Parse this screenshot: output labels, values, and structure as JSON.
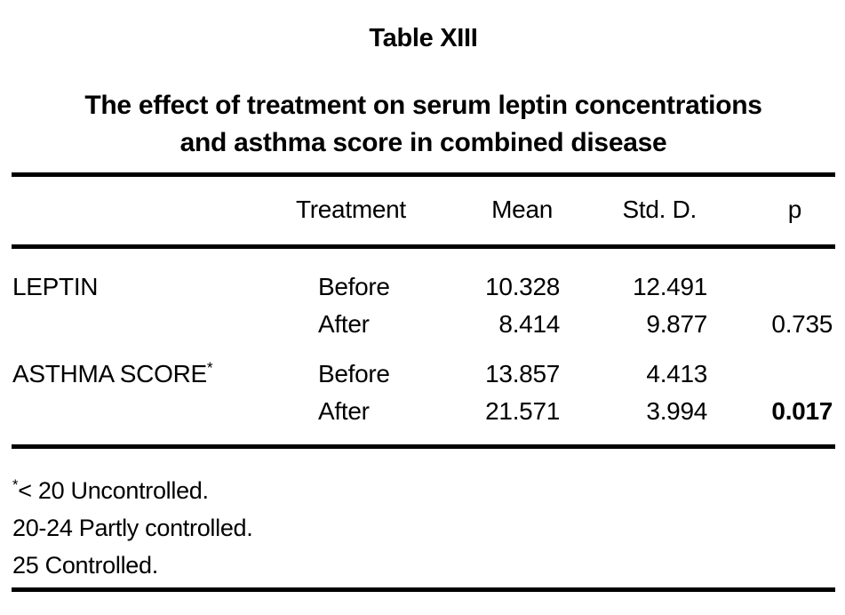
{
  "title": "Table XIII",
  "subtitle": {
    "line1": "The effect of treatment on serum leptin concentrations",
    "line2": "and asthma score in combined disease"
  },
  "table": {
    "columns": {
      "parameter": "",
      "treatment": "Treatment",
      "mean": "Mean",
      "std": "Std. D.",
      "p": "p"
    },
    "groups": [
      {
        "label": "LEPTIN",
        "marker": "",
        "rows": [
          {
            "treatment": "Before",
            "mean": "10.328",
            "std": "12.491",
            "p": ""
          },
          {
            "treatment": "After",
            "mean": "8.414",
            "std": "9.877",
            "p": "0.735"
          }
        ]
      },
      {
        "label": "ASTHMA SCORE",
        "marker": "*",
        "rows": [
          {
            "treatment": "Before",
            "mean": "13.857",
            "std": "4.413",
            "p": ""
          },
          {
            "treatment": "After",
            "mean": "21.571",
            "std": "3.994",
            "p": "0.017"
          }
        ]
      }
    ]
  },
  "footnotes": [
    {
      "marker": "*",
      "text": "< 20 Uncontrolled."
    },
    {
      "marker": "",
      "text": "20-24 Partly controlled."
    },
    {
      "marker": "",
      "text": "25 Controlled."
    }
  ],
  "colors": {
    "text": "#000000",
    "background": "#ffffff",
    "rule": "#000000"
  }
}
